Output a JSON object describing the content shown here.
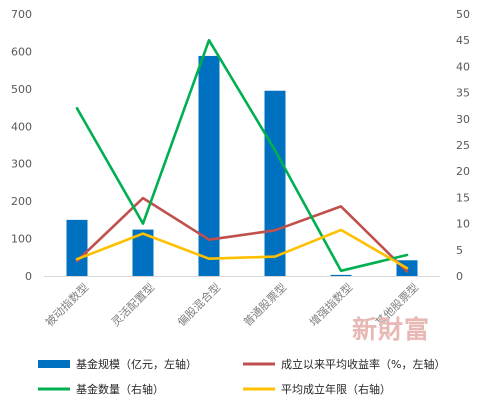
{
  "chart_data": {
    "type": "bar",
    "categories": [
      "被动指数型",
      "灵活配置型",
      "偏股混合型",
      "普通股票型",
      "增强指数型",
      "其他股票型"
    ],
    "left_axis": {
      "ylim": [
        0,
        700
      ],
      "ticks": [
        0,
        100,
        200,
        300,
        400,
        500,
        600,
        700
      ]
    },
    "right_axis": {
      "ylim": [
        0,
        50
      ],
      "ticks": [
        0,
        5,
        10,
        15,
        20,
        25,
        30,
        35,
        40,
        45,
        50
      ]
    },
    "series": [
      {
        "name": "基金规模（亿元，左轴）",
        "type": "bar",
        "axis": "left",
        "color": "#0070c0",
        "values": [
          150,
          124,
          588,
          495,
          3,
          42
        ]
      },
      {
        "name": "成立以来平均收益率（%，左轴）",
        "type": "line",
        "axis": "left",
        "color": "#c0504d",
        "values": [
          40,
          208,
          97,
          122,
          186,
          12
        ]
      },
      {
        "name": "基金数量（右轴）",
        "type": "line",
        "axis": "right",
        "color": "#00b050",
        "values": [
          32,
          10,
          45,
          24,
          1,
          4
        ]
      },
      {
        "name": "平均成立年限（右轴）",
        "type": "line",
        "axis": "right",
        "color": "#ffc000",
        "values": [
          3.2,
          8.1,
          3.3,
          3.7,
          8.8,
          1.5
        ]
      }
    ],
    "grid": false,
    "legend_position": "bottom"
  },
  "watermark": "新財富"
}
